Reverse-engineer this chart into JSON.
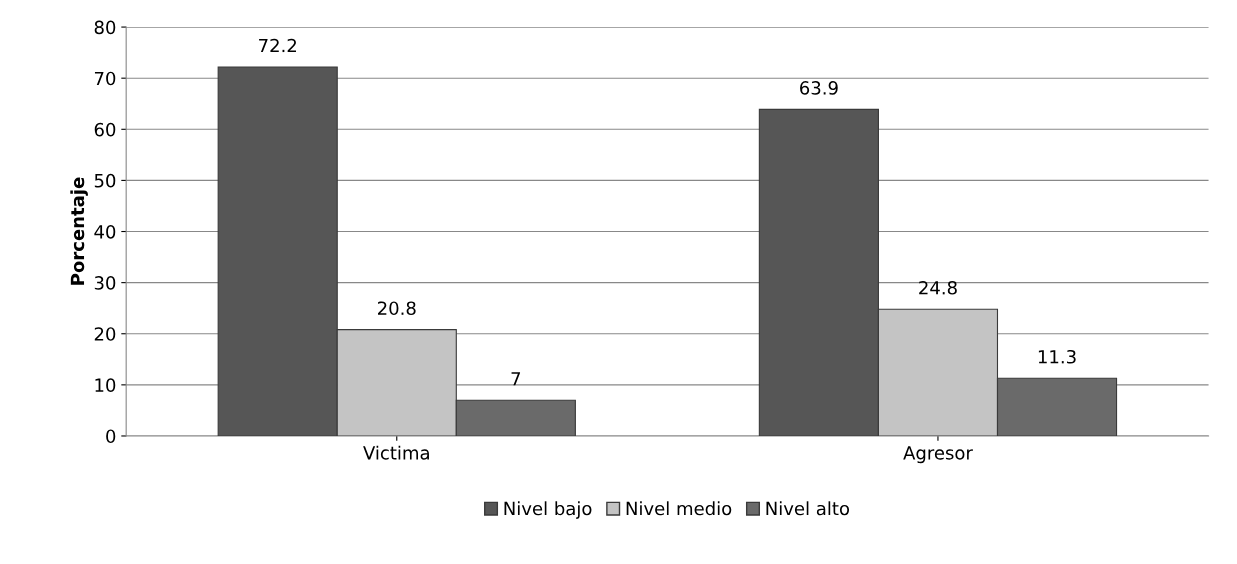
{
  "chart_data": {
    "type": "bar",
    "ylabel": "Porcentaje",
    "categories": [
      "Victima",
      "Agresor"
    ],
    "series": [
      {
        "name": "Nivel bajo",
        "color": "#565656",
        "values": [
          72.2,
          63.9
        ]
      },
      {
        "name": "Nivel medio",
        "color": "#c4c4c4",
        "values": [
          20.8,
          24.8
        ]
      },
      {
        "name": "Nivel alto",
        "color": "#6a6a6a",
        "values": [
          7,
          11.3
        ]
      }
    ],
    "ylim": [
      0,
      80
    ],
    "yticks": [
      0,
      10,
      20,
      30,
      40,
      50,
      60,
      70,
      80
    ],
    "grid": "y",
    "legend": "bottom",
    "data_labels": true
  }
}
